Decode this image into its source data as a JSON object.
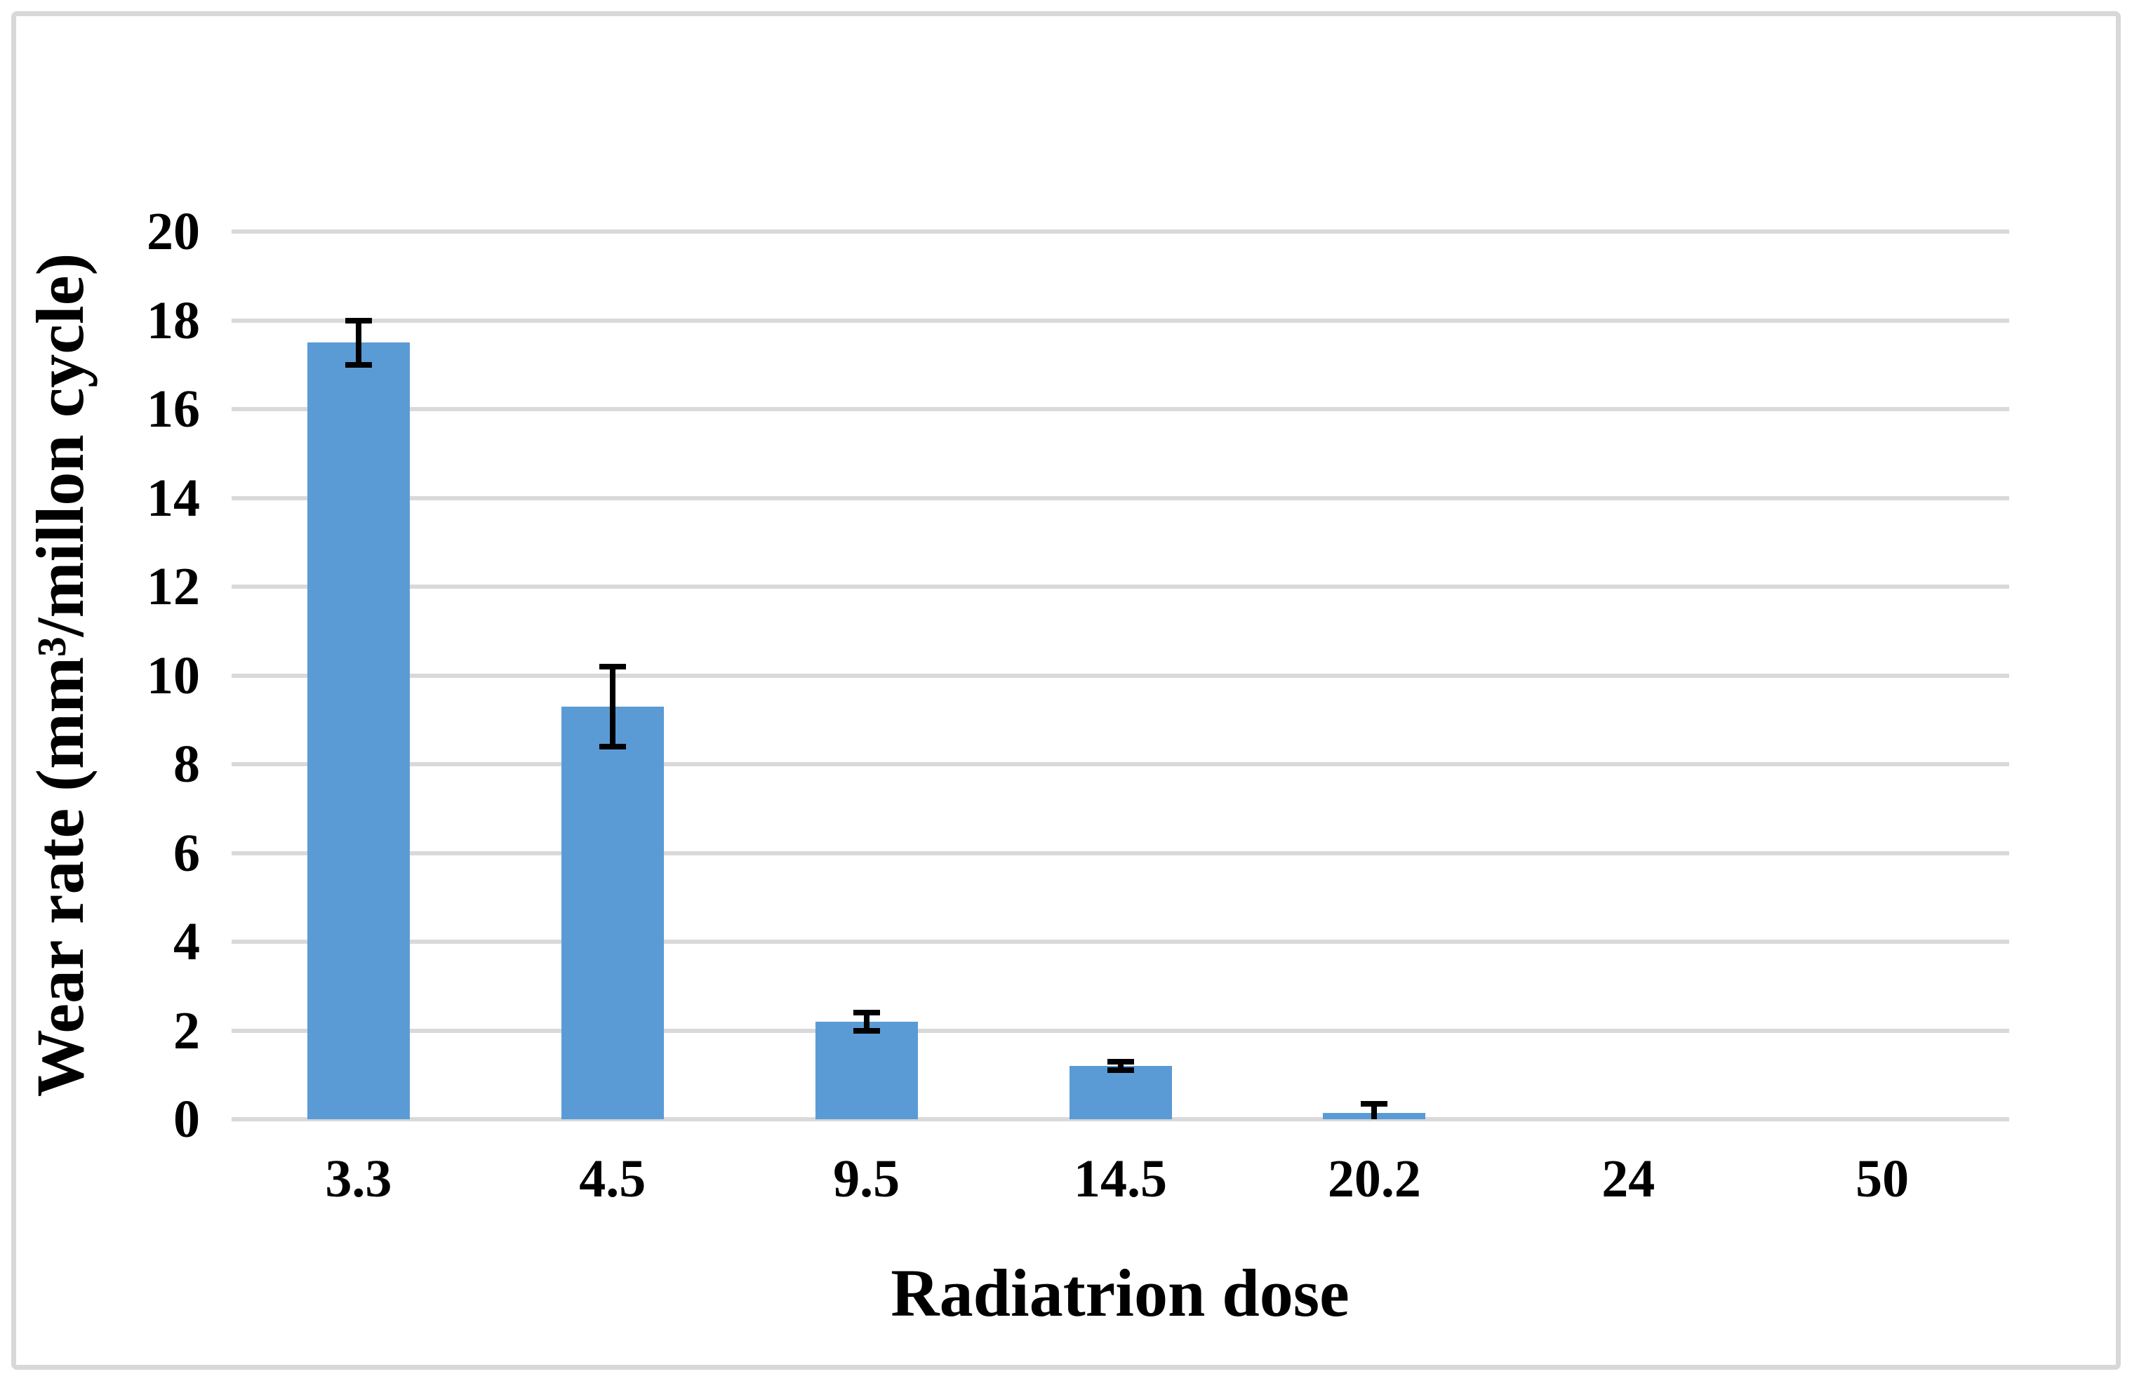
{
  "figure": {
    "background_color": "#ffffff",
    "border_color": "#d8d8d8"
  },
  "chart_data": {
    "type": "bar",
    "title": "",
    "xlabel": "Radiatrion dose",
    "ylabel": "Wear rate (mm³/millon cycle)",
    "categories": [
      "3.3",
      "4.5",
      "9.5",
      "14.5",
      "20.2",
      "24",
      "50"
    ],
    "values": [
      17.5,
      9.3,
      2.2,
      1.2,
      0.15,
      0,
      0
    ],
    "error_bars": [
      0.5,
      0.9,
      0.2,
      0.1,
      0.2,
      0,
      0
    ],
    "ylim": [
      0,
      20
    ],
    "ytick_step": 2,
    "ytick_labels": [
      "0",
      "2",
      "4",
      "6",
      "8",
      "10",
      "12",
      "14",
      "16",
      "18",
      "20"
    ],
    "grid": "horizontal",
    "legend_position": "none",
    "bar_color": "#5b9bd5",
    "gridline_color": "#d9d9d9",
    "axis_line_color": "#d9d9d9",
    "error_bar_color": "#000000",
    "text_color": "#000000"
  }
}
